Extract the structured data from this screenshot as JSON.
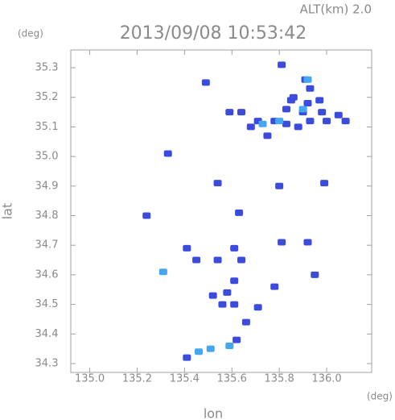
{
  "chart_data": {
    "type": "scatter",
    "title": "2013/09/08 10:53:42",
    "subtitle": "ALT(km) 2.0",
    "y_unit": "(deg)",
    "x_unit": "(deg)",
    "x_label": "lon",
    "y_label": "lat",
    "xlim": [
      134.92,
      136.19
    ],
    "ylim": [
      34.27,
      35.36
    ],
    "xticks": [
      {
        "value": 135.0,
        "label": "135.0"
      },
      135.2,
      135.4,
      135.6,
      135.8,
      {
        "value": 136.0,
        "label": "136.0"
      }
    ],
    "yticks": [
      34.3,
      34.4,
      34.5,
      34.6,
      34.7,
      34.8,
      34.9,
      {
        "value": 35.0,
        "label": "35.0"
      },
      35.1,
      35.2,
      35.3
    ],
    "series": [
      {
        "color": "#3b4cdc",
        "x": [
          135.81,
          135.91,
          135.93,
          135.86,
          135.97,
          135.83,
          135.9,
          135.98,
          136.05,
          136.08,
          135.78,
          135.71,
          135.64,
          135.59,
          135.68,
          135.75,
          135.83,
          136.0,
          135.93,
          135.88,
          135.85,
          135.92,
          135.49,
          135.33,
          135.54,
          135.99,
          135.8,
          135.24,
          135.63,
          135.81,
          135.92,
          135.41,
          135.45,
          135.61,
          135.54,
          135.64,
          135.95,
          135.61,
          135.58,
          135.78,
          135.61,
          135.56,
          135.71,
          135.66,
          135.62,
          135.41,
          135.52
        ],
        "values": [
          35.31,
          35.26,
          35.23,
          35.2,
          35.19,
          35.16,
          35.15,
          35.15,
          35.14,
          35.12,
          35.12,
          35.12,
          35.15,
          35.15,
          35.1,
          35.07,
          35.11,
          35.12,
          35.12,
          35.1,
          35.19,
          35.18,
          35.25,
          35.01,
          34.91,
          34.91,
          34.9,
          34.8,
          34.81,
          34.71,
          34.71,
          34.69,
          34.65,
          34.69,
          34.65,
          34.65,
          34.6,
          34.58,
          34.54,
          34.56,
          34.5,
          34.5,
          34.49,
          34.44,
          34.38,
          34.32,
          34.53
        ]
      },
      {
        "color": "#43a7f2",
        "x": [
          135.92,
          135.9,
          135.8,
          135.73,
          135.31,
          135.59,
          135.51,
          135.46
        ],
        "values": [
          35.26,
          35.16,
          35.12,
          35.11,
          34.61,
          34.36,
          34.35,
          34.34
        ]
      }
    ]
  }
}
